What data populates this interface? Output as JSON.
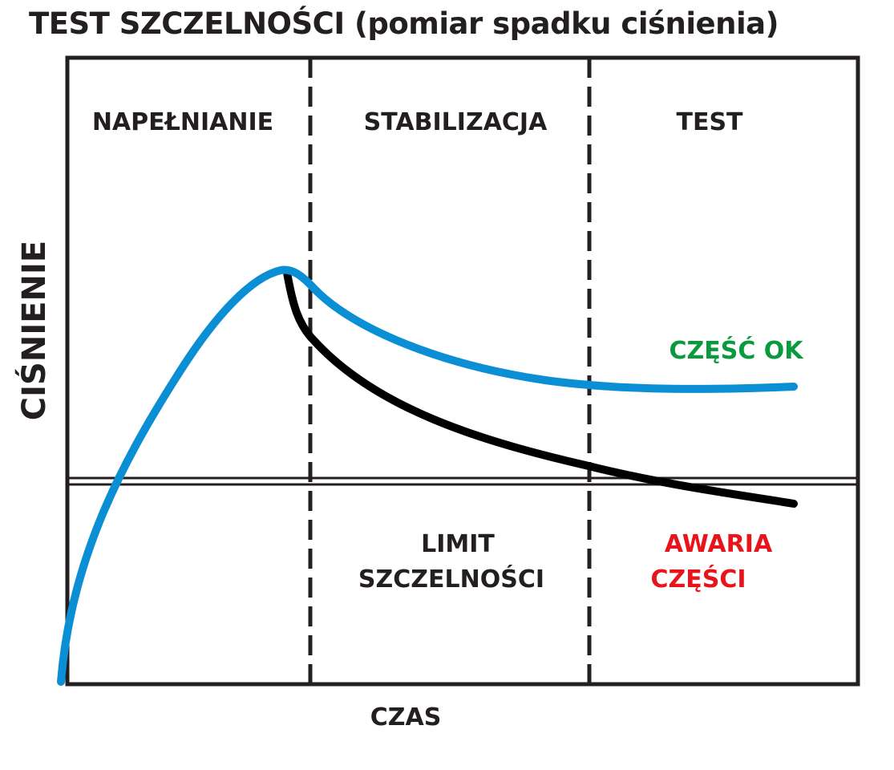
{
  "title": "TEST SZCZELNOŚCI (pomiar spadku ciśnienia)",
  "axes": {
    "x_label": "CZAS",
    "y_label": "CIŚNIENIE"
  },
  "phases": [
    {
      "label": "NAPEŁNIANIE"
    },
    {
      "label": "STABILIZACJA"
    },
    {
      "label": "TEST"
    }
  ],
  "limit": {
    "label_line1": "LIMIT",
    "label_line2": "SZCZELNOŚCI"
  },
  "curves": {
    "ok": {
      "label": "CZĘŚĆ OK",
      "color": "#0a8fd4",
      "label_color": "#0a9a3e"
    },
    "fail": {
      "label_line1": "AWARIA",
      "label_line2": "CZĘŚCI",
      "color": "#000000",
      "label_color": "#e8141c"
    }
  },
  "colors": {
    "frame": "#231f20",
    "text": "#231f20"
  }
}
